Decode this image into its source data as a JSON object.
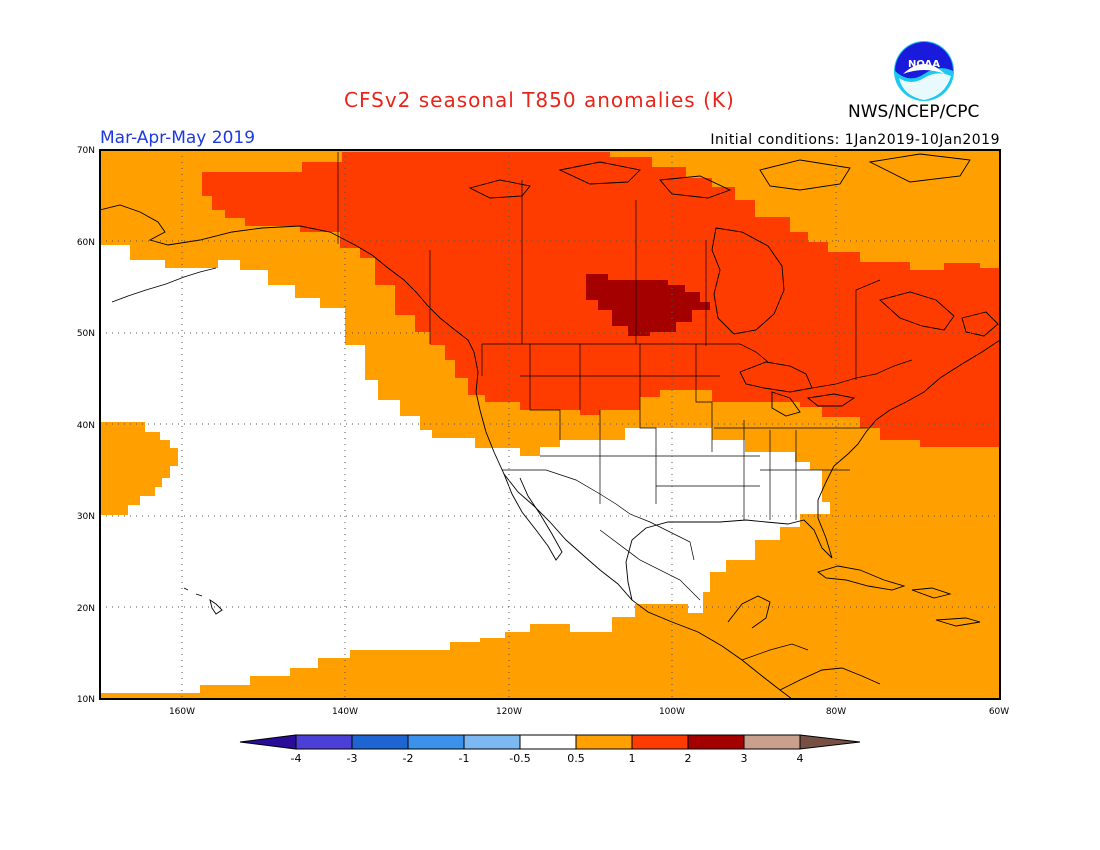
{
  "header": {
    "title": "CFSv2 seasonal T850 anomalies (K)",
    "organization": "NWS/NCEP/CPC",
    "logo_text": "NOAA",
    "period": "Mar-Apr-May 2019",
    "initial_conditions": "Initial conditions: 1Jan2019-10Jan2019"
  },
  "map": {
    "lon_range": [
      -172,
      -60
    ],
    "lat_range": [
      10,
      70
    ],
    "lat_ticks": [
      "10N",
      "20N",
      "30N",
      "40N",
      "50N",
      "60N",
      "70N"
    ],
    "lon_ticks": [
      "160W",
      "140W",
      "120W",
      "100W",
      "80W",
      "60W"
    ],
    "gridlines": "dotted"
  },
  "colorbar": {
    "labels": [
      "-4",
      "-3",
      "-2",
      "-1",
      "-0.5",
      "0.5",
      "1",
      "2",
      "3",
      "4"
    ],
    "colors": [
      "#2a0c9a",
      "#4b3fd6",
      "#1e64d2",
      "#3c91ea",
      "#7cb8f2",
      "#ffffff",
      "#ffa000",
      "#ff3c00",
      "#a50000",
      "#c8a08c",
      "#785043"
    ]
  },
  "anomaly_colors": {
    "neutral": "#ffffff",
    "warm_0_5_to_1": "#ffa000",
    "warm_1_to_2": "#ff3c00",
    "warm_2_to_3": "#a50000"
  }
}
